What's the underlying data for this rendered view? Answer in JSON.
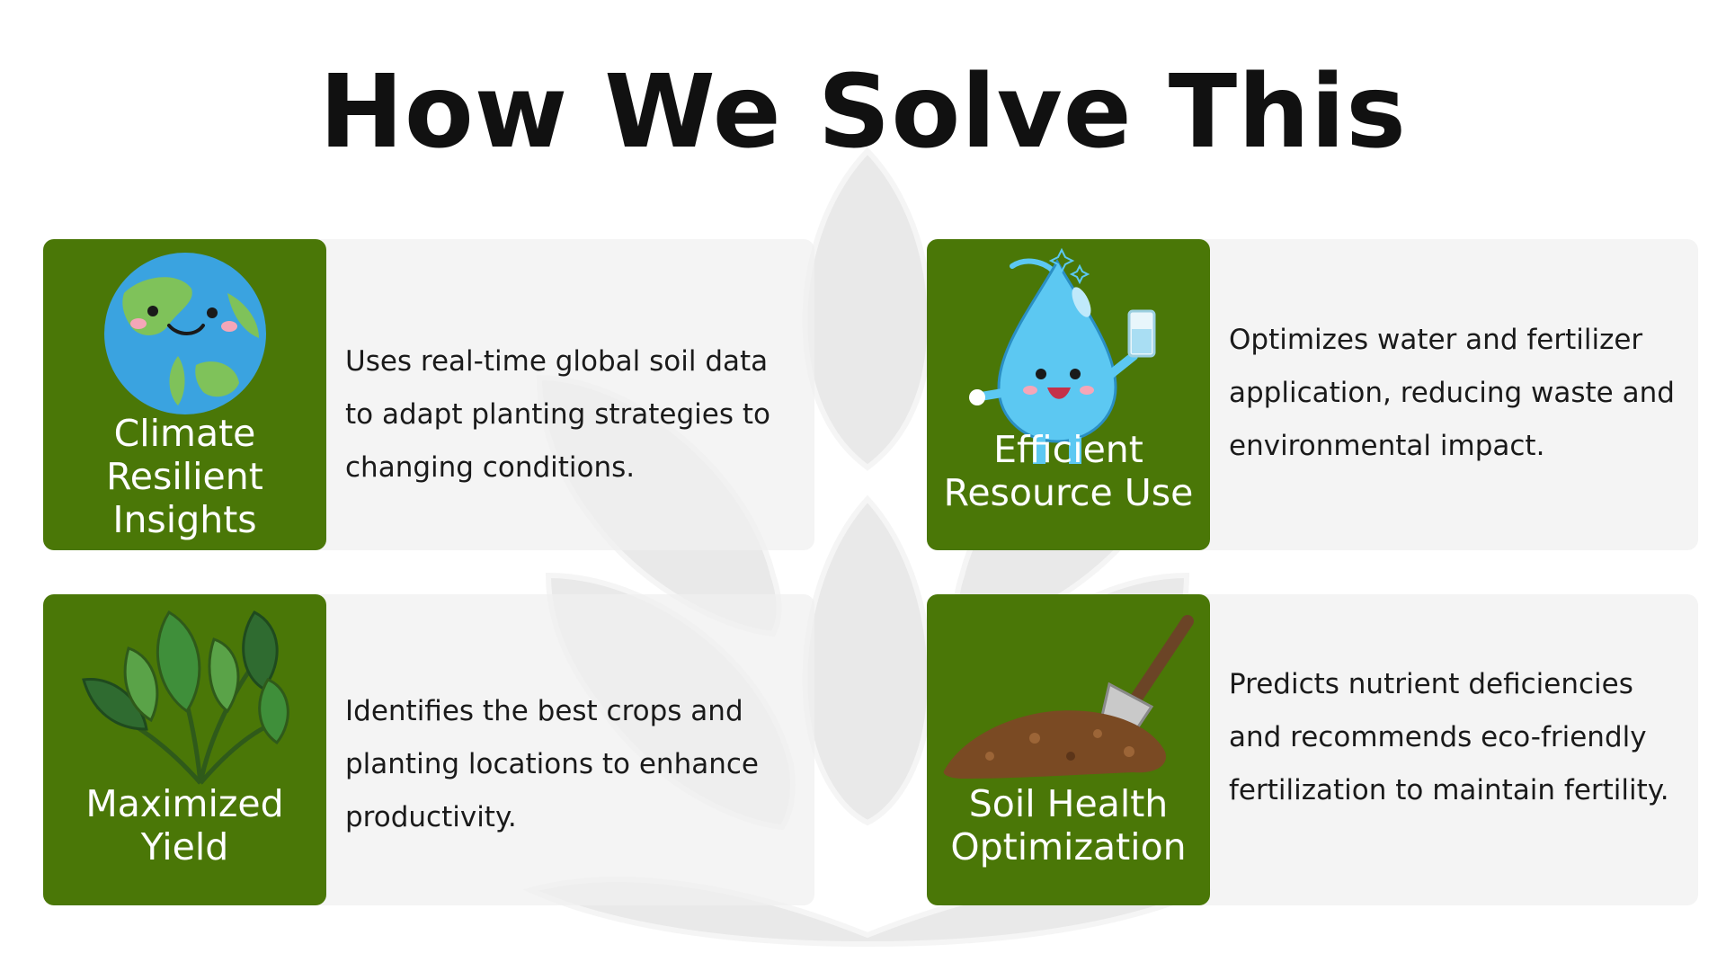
{
  "page": {
    "title": "How We Solve This"
  },
  "colors": {
    "panel": "#4a7707",
    "card": "#f0f0f0",
    "title": "#111111",
    "text": "#1a1a1a"
  },
  "cards": [
    {
      "label": "Climate Resilient Insights",
      "icon": "earth-globe-icon",
      "description": "Uses real-time global soil data to adapt planting strategies to changing conditions."
    },
    {
      "label": "Efficient Resource Use",
      "icon": "water-drop-icon",
      "description": "Optimizes water and fertilizer application, reducing waste and environmental impact."
    },
    {
      "label": "Maximized Yield",
      "icon": "leafy-plant-icon",
      "description": "Identifies the best crops and planting locations to enhance productivity."
    },
    {
      "label": "Soil Health Optimization",
      "icon": "soil-shovel-icon",
      "description": "Predicts nutrient deficiencies and recommends eco-friendly fertilization to maintain fertility."
    }
  ]
}
